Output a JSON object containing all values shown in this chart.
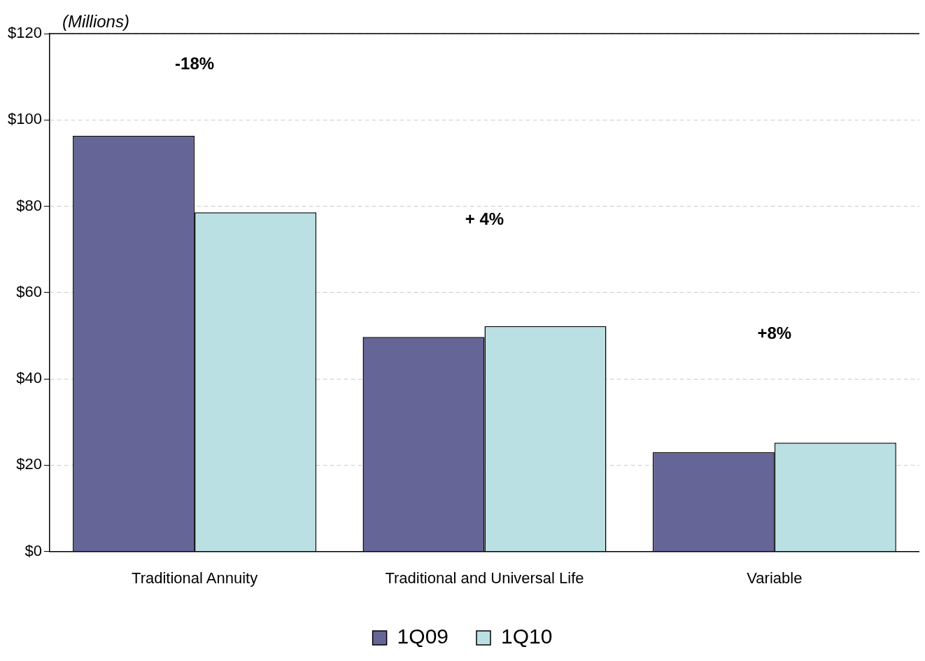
{
  "chart_data": {
    "type": "bar",
    "ylabel": "(Millions)",
    "categories": [
      "Traditional Annuity",
      "Traditional and Universal Life",
      "Variable"
    ],
    "series": [
      {
        "name": "1Q09",
        "color": "#656597",
        "values": [
          96.3,
          49.7,
          23.0
        ]
      },
      {
        "name": "1Q10",
        "color": "#bae0e3",
        "values": [
          78.6,
          52.2,
          25.2
        ]
      }
    ],
    "ylim": [
      0,
      120
    ],
    "yticks": [
      {
        "value": 0,
        "label": "$0"
      },
      {
        "value": 20,
        "label": "$20"
      },
      {
        "value": 40,
        "label": "$40"
      },
      {
        "value": 60,
        "label": "$60"
      },
      {
        "value": 80,
        "label": "$80"
      },
      {
        "value": 100,
        "label": "$100"
      },
      {
        "value": 120,
        "label": "$120"
      }
    ],
    "grid": "y",
    "legend": "bottom",
    "annotations": [
      "-18%",
      "+ 4%",
      "+8%"
    ]
  }
}
